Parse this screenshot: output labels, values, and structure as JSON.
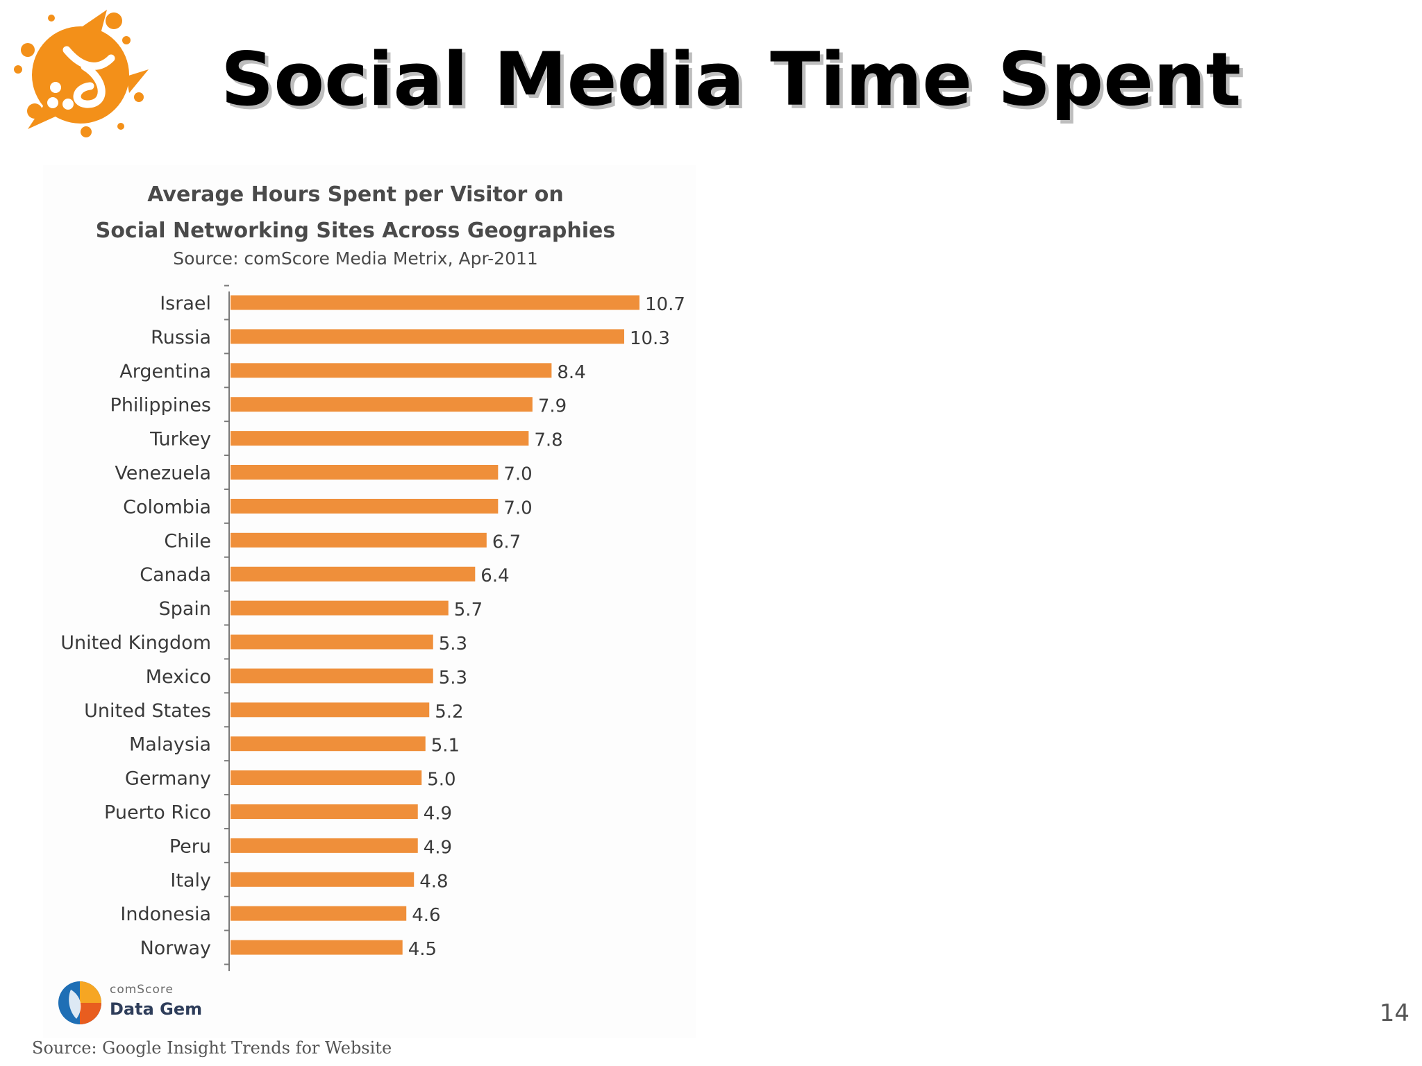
{
  "slide": {
    "title": "Social Media Time Spent",
    "page_number": "14",
    "footnote": "Source: Google Insight Trends for Website"
  },
  "branding": {
    "logo_icon": "orange-splash-logo-icon",
    "logo_color": "#f39019",
    "data_gem_brand": "comScore",
    "data_gem_product": "Data Gem"
  },
  "colors": {
    "bar": "#ef8f3a",
    "text": "#3a3a3a",
    "axis": "#7a7a7a"
  },
  "chart_data": {
    "type": "bar",
    "orientation": "horizontal",
    "title": "Average Hours Spent per Visitor on Social Networking Sites Across Geographies",
    "title_lines": [
      "Average Hours Spent per Visitor on",
      "Social Networking Sites Across Geographies"
    ],
    "subtitle": "Source: comScore Media Metrix, Apr-2011",
    "categories": [
      "Israel",
      "Russia",
      "Argentina",
      "Philippines",
      "Turkey",
      "Venezuela",
      "Colombia",
      "Chile",
      "Canada",
      "Spain",
      "United Kingdom",
      "Mexico",
      "United States",
      "Malaysia",
      "Germany",
      "Puerto Rico",
      "Peru",
      "Italy",
      "Indonesia",
      "Norway"
    ],
    "values": [
      10.7,
      10.3,
      8.4,
      7.9,
      7.8,
      7.0,
      7.0,
      6.7,
      6.4,
      5.7,
      5.3,
      5.3,
      5.2,
      5.1,
      5.0,
      4.9,
      4.9,
      4.8,
      4.6,
      4.5
    ],
    "value_labels": [
      "10.7",
      "10.3",
      "8.4",
      "7.9",
      "7.8",
      "7.0",
      "7.0",
      "6.7",
      "6.4",
      "5.7",
      "5.3",
      "5.3",
      "5.2",
      "5.1",
      "5.0",
      "4.9",
      "4.9",
      "4.8",
      "4.6",
      "4.5"
    ],
    "xlim": [
      0,
      10.7
    ],
    "grid": false,
    "legend": "none"
  }
}
